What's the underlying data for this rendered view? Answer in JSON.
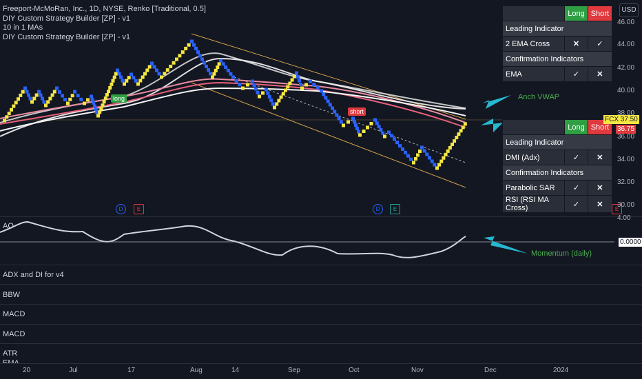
{
  "header": {
    "symbol_line": "Freeport-McMoRan, Inc., 1D, NYSE, Renko [Traditional, 0.5]",
    "indicators": [
      "DIY Custom Strategy Builder  [ZP] - v1",
      " 10 in 1 MAs",
      "DIY Custom Strategy Builder  [ZP] - v1"
    ]
  },
  "currency_button": "USD",
  "table_top": {
    "col_long": "Long",
    "col_short": "Short",
    "sections": [
      {
        "title": "Leading Indicator",
        "rows": [
          {
            "name": "2 EMA Cross",
            "long": "cross",
            "short": "check"
          }
        ]
      },
      {
        "title": "Confirmation Indicators",
        "rows": [
          {
            "name": "EMA",
            "long": "check",
            "short": "cross"
          }
        ]
      }
    ]
  },
  "table_bottom": {
    "col_long": "Long",
    "col_short": "Short",
    "sections": [
      {
        "title": "Leading Indicator",
        "rows": [
          {
            "name": "DMI (Adx)",
            "long": "check",
            "short": "cross"
          }
        ]
      },
      {
        "title": "Confirmation Indicators",
        "rows": [
          {
            "name": "Parabolic SAR",
            "long": "check",
            "short": "cross"
          },
          {
            "name": "RSI (RSI MA Cross)",
            "long": "check",
            "short": "cross"
          }
        ]
      }
    ]
  },
  "annotations": {
    "vwap": "Anch VWAP",
    "momentum": "Momentum (daily)"
  },
  "signals": {
    "long": "long",
    "short": "short"
  },
  "price_axis": [
    "46.00",
    "44.00",
    "42.00",
    "40.00",
    "38.00",
    "36.00",
    "34.00",
    "32.00",
    "30.00",
    "4.00"
  ],
  "price_tags": {
    "symbol": "FCX",
    "last": "37.50",
    "other": "36.75",
    "ao_value": "0.0000"
  },
  "time_axis": [
    "20",
    "Jul",
    "17",
    "Aug",
    "14",
    "Sep",
    "Oct",
    "Nov",
    "Dec",
    "2024"
  ],
  "lower_panes": [
    "AO",
    "ADX and DI for v4",
    "BBW",
    "MACD",
    "MACD",
    "ATR",
    "EMA"
  ],
  "events": [
    "D",
    "E",
    "D",
    "E",
    "E"
  ],
  "colors": {
    "up": "#f5e642",
    "down": "#2962ff",
    "accent": "#26b8d0",
    "long": "#2ea043",
    "short": "#e0393e"
  },
  "chart_data": {
    "type": "renko",
    "brick_size": 0.5,
    "last_price": 37.5
  }
}
